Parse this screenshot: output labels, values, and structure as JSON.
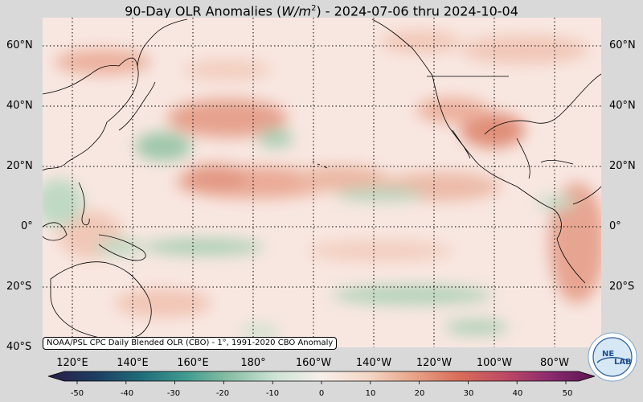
{
  "title": {
    "prefix": "90-Day OLR Anomalies (",
    "unit_base": "W/m",
    "unit_exp": "2",
    "suffix": ") - 2024-07-06 thru 2024-10-04"
  },
  "lat_labels": [
    "60°N",
    "40°N",
    "20°N",
    "0°",
    "20°S",
    "40°S"
  ],
  "lon_labels": [
    "120°E",
    "140°E",
    "160°E",
    "180°",
    "160°W",
    "140°W",
    "120°W",
    "100°W",
    "80°W"
  ],
  "credit": "NOAA/PSL CPC Daily Blended OLR (CBO) - 1°, 1991-2020 CBO Anomaly",
  "colorbar": {
    "ticks": [
      "-50",
      "-40",
      "-30",
      "-20",
      "-10",
      "0",
      "10",
      "20",
      "30",
      "40",
      "50"
    ],
    "colors": [
      "#2a1e46",
      "#1e3b60",
      "#1f6a78",
      "#3f9a8f",
      "#8ac0a5",
      "#cfe4d6",
      "#f7efe9",
      "#f4d8c8",
      "#e8a58a",
      "#d96e5a",
      "#c04a63",
      "#8c2b6e",
      "#5a1450"
    ]
  },
  "logo": {
    "text_a": "NE",
    "text_b": "LAB",
    "ring_text": "NOAA PHYSICAL SCIENCES LABORATORY"
  },
  "map_colors": {
    "base": "#f8e7e1",
    "warm": "#e49a84",
    "cool": "#8fc3a0"
  }
}
